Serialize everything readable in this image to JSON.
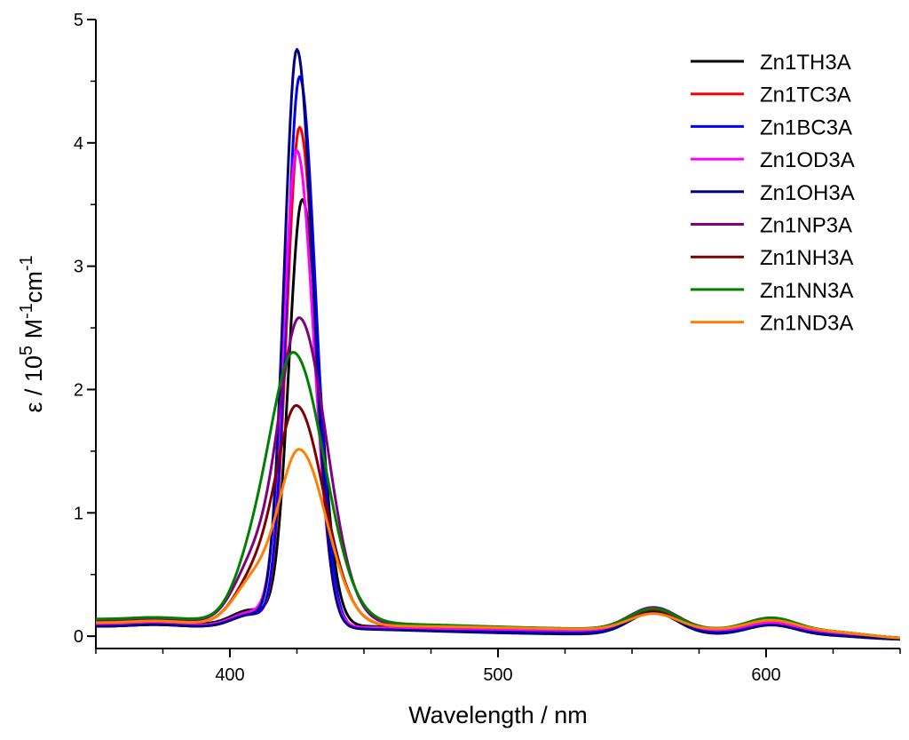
{
  "chart_data": {
    "type": "line",
    "title": "",
    "xlabel": "Wavelength / nm",
    "ylabel": {
      "prefix": "ε / 10",
      "exp1": "5",
      "mid1": " M",
      "exp2": "-1",
      "mid2": "cm",
      "exp3": "-1"
    },
    "xlim": [
      350,
      650
    ],
    "ylim": [
      -0.1,
      5
    ],
    "x_ticks": [
      400,
      500,
      600
    ],
    "x_minor_ticks": [
      350,
      375,
      425,
      450,
      475,
      525,
      550,
      575,
      625,
      650
    ],
    "y_ticks": [
      0,
      1,
      2,
      3,
      4,
      5
    ],
    "y_minor_ticks": [
      0.5,
      1.5,
      2.5,
      3.5,
      4.5
    ],
    "legend_position": "top-right",
    "series": [
      {
        "name": "Zn1TH3A",
        "color": "#000000",
        "peak": 3.47,
        "peak_x": 427,
        "sigma": 5.0,
        "base_left": 0.1,
        "shoulder": 0.12,
        "tail": 0.05,
        "q1": 0.15,
        "q2": 0.07
      },
      {
        "name": "Zn1TC3A",
        "color": "#ff0000",
        "peak": 4.07,
        "peak_x": 426,
        "sigma": 4.8,
        "base_left": 0.08,
        "shoulder": 0.1,
        "tail": 0.03,
        "q1": 0.16,
        "q2": 0.07
      },
      {
        "name": "Zn1BC3A",
        "color": "#0000ff",
        "peak": 4.48,
        "peak_x": 426,
        "sigma": 4.8,
        "base_left": 0.08,
        "shoulder": 0.1,
        "tail": 0.02,
        "q1": 0.18,
        "q2": 0.08
      },
      {
        "name": "Zn1OD3A",
        "color": "#ff00ff",
        "peak": 3.87,
        "peak_x": 425,
        "sigma": 5.0,
        "base_left": 0.09,
        "shoulder": 0.11,
        "tail": 0.04,
        "q1": 0.16,
        "q2": 0.07
      },
      {
        "name": "Zn1OH3A",
        "color": "#000080",
        "peak": 4.7,
        "peak_x": 425,
        "sigma": 4.8,
        "base_left": 0.08,
        "shoulder": 0.1,
        "tail": 0.01,
        "q1": 0.18,
        "q2": 0.08
      },
      {
        "name": "Zn1NP3A",
        "color": "#800080",
        "peak": 2.48,
        "peak_x": 426,
        "sigma": 8.0,
        "base_left": 0.13,
        "shoulder": 0.4,
        "tail": 0.05,
        "q1": 0.18,
        "q2": 0.09
      },
      {
        "name": "Zn1NH3A",
        "color": "#800000",
        "peak": 1.78,
        "peak_x": 425,
        "sigma": 8.0,
        "base_left": 0.11,
        "shoulder": 0.3,
        "tail": 0.05,
        "q1": 0.16,
        "q2": 0.08
      },
      {
        "name": "Zn1NN3A",
        "color": "#008000",
        "peak": 2.18,
        "peak_x": 424,
        "sigma": 9.0,
        "base_left": 0.14,
        "shoulder": 0.35,
        "tail": 0.05,
        "q1": 0.17,
        "q2": 0.1
      },
      {
        "name": "Zn1ND3A",
        "color": "#ff8000",
        "peak": 1.43,
        "peak_x": 426,
        "sigma": 8.0,
        "base_left": 0.11,
        "shoulder": 0.3,
        "tail": 0.05,
        "q1": 0.13,
        "q2": 0.08
      }
    ]
  }
}
